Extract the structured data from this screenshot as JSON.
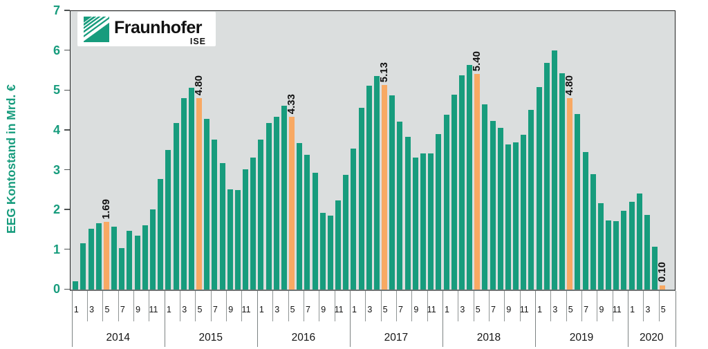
{
  "page": {
    "description": "Monthly EEG account balance bar chart by Fraunhofer ISE, Jan 2014 - May 2020"
  },
  "logo": {
    "brand": "Fraunhofer",
    "sub": "ISE"
  },
  "y_axis": {
    "title": "EEG Kontostand in Mrd. €",
    "min": 0,
    "max": 7,
    "tick_labels": [
      "0",
      "1",
      "2",
      "3",
      "4",
      "5",
      "6",
      "7"
    ]
  },
  "chart_data": {
    "type": "bar",
    "title": "",
    "xlabel": "",
    "ylabel": "EEG Kontostand in Mrd. €",
    "ylim": [
      0,
      7
    ],
    "grid": false,
    "month_tick_labels_full_year": [
      "1",
      "3",
      "5",
      "7",
      "9",
      "11"
    ],
    "highlight_month": 5,
    "years": [
      {
        "year": "2014",
        "month_ticks": [
          "1",
          "3",
          "5",
          "7",
          "9",
          "11"
        ],
        "values": [
          0.2,
          1.15,
          1.52,
          1.66,
          1.69,
          1.56,
          1.03,
          1.47,
          1.34,
          1.6,
          2.0,
          2.76
        ],
        "highlight_index": 4,
        "highlight_label": "1.69"
      },
      {
        "year": "2015",
        "month_ticks": [
          "1",
          "3",
          "5",
          "7",
          "9",
          "11"
        ],
        "values": [
          3.49,
          4.17,
          4.79,
          5.06,
          4.8,
          4.27,
          3.75,
          3.17,
          2.51,
          2.49,
          3.01,
          3.31
        ],
        "highlight_index": 4,
        "highlight_label": "4.80"
      },
      {
        "year": "2016",
        "month_ticks": [
          "1",
          "3",
          "5",
          "7",
          "9",
          "11"
        ],
        "values": [
          3.76,
          4.17,
          4.33,
          4.61,
          4.33,
          3.66,
          3.37,
          2.93,
          1.91,
          1.84,
          2.22,
          2.87
        ],
        "highlight_index": 4,
        "highlight_label": "4.33"
      },
      {
        "year": "2017",
        "month_ticks": [
          "1",
          "3",
          "5",
          "7",
          "9",
          "11"
        ],
        "values": [
          3.53,
          4.55,
          5.11,
          5.35,
          5.13,
          4.86,
          4.21,
          3.83,
          3.3,
          3.4,
          3.41,
          3.9
        ],
        "highlight_index": 4,
        "highlight_label": "5.13"
      },
      {
        "year": "2018",
        "month_ticks": [
          "1",
          "3",
          "5",
          "7",
          "9",
          "11"
        ],
        "values": [
          4.38,
          4.89,
          5.37,
          5.63,
          5.4,
          4.64,
          4.22,
          4.05,
          3.64,
          3.68,
          3.88,
          4.51
        ],
        "highlight_index": 4,
        "highlight_label": "5.40"
      },
      {
        "year": "2019",
        "month_ticks": [
          "1",
          "3",
          "5",
          "7",
          "9",
          "11"
        ],
        "values": [
          5.08,
          5.69,
          6.0,
          5.42,
          4.8,
          4.39,
          3.45,
          2.89,
          2.16,
          1.73,
          1.7,
          1.97
        ],
        "highlight_index": 4,
        "highlight_label": "4.80"
      },
      {
        "year": "2020",
        "month_ticks": [
          "1",
          "3",
          "5"
        ],
        "values": [
          2.19,
          2.4,
          1.87,
          1.06,
          0.1
        ],
        "highlight_index": 4,
        "highlight_label": "0.10"
      }
    ],
    "colors": {
      "bar": "#179C7D",
      "highlight_bar": "#F8A963",
      "plot_background": "#DBDEDE",
      "axis_text": "#179C7D",
      "label_text": "#111111"
    }
  }
}
